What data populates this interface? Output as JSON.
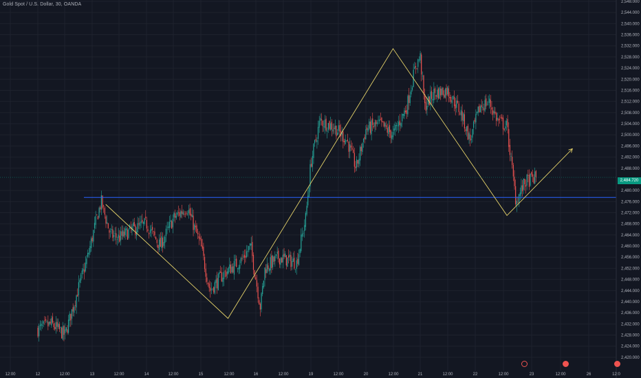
{
  "header": {
    "symbol_title": "Gold Spot / U.S. Dollar, 30, OANDA"
  },
  "price_axis": {
    "labels": [
      "2,548.000",
      "2,544.000",
      "2,540.000",
      "2,536.000",
      "2,532.000",
      "2,528.000",
      "2,524.000",
      "2,520.000",
      "2,516.000",
      "2,512.000",
      "2,508.000",
      "2,504.000",
      "2,500.000",
      "2,496.000",
      "2,492.000",
      "2,488.000",
      "2,480.000",
      "2,476.000",
      "2,472.000",
      "2,468.000",
      "2,464.000",
      "2,460.000",
      "2,456.000",
      "2,452.000",
      "2,448.000",
      "2,444.000",
      "2,440.000",
      "2,436.000",
      "2,432.000",
      "2,428.000",
      "2,424.000",
      "2,420.000"
    ],
    "current_price": "2,484.720"
  },
  "time_axis": {
    "labels": [
      "12:00",
      "12",
      "12:00",
      "13",
      "12:00",
      "14",
      "12:00",
      "15",
      "12:00",
      "16",
      "12:00",
      "19",
      "12:00",
      "20",
      "12:00",
      "21",
      "12:00",
      "22",
      "12:00",
      "23",
      "12:00",
      "26",
      "12:0"
    ]
  },
  "colors": {
    "bg": "#131722",
    "up": "#26a69a",
    "down": "#ef5350",
    "pattern": "#e6d36a",
    "level": "#2962ff",
    "grid": "#1e222d",
    "price_tag": "#089981"
  },
  "chart_data": {
    "type": "candlestick",
    "symbol": "XAUUSD",
    "timeframe": "30",
    "ylim": [
      2418,
      2548
    ],
    "horizontal_line": 2477.5,
    "zigzag": [
      {
        "x": "13 06:00",
        "y": 2475
      },
      {
        "x": "15 12:00",
        "y": 2434
      },
      {
        "x": "20 12:00",
        "y": 2531
      },
      {
        "x": "22 14:00",
        "y": 2471
      },
      {
        "x": "23 18:00",
        "y": 2495
      }
    ],
    "close_path": [
      {
        "x": "12 00:00",
        "y": 2430
      },
      {
        "x": "12 06:00",
        "y": 2432
      },
      {
        "x": "12 12:00",
        "y": 2428
      },
      {
        "x": "12 18:00",
        "y": 2445
      },
      {
        "x": "12 22:00",
        "y": 2456
      },
      {
        "x": "13 02:00",
        "y": 2470
      },
      {
        "x": "13 04:00",
        "y": 2476
      },
      {
        "x": "13 08:00",
        "y": 2464
      },
      {
        "x": "13 12:00",
        "y": 2463
      },
      {
        "x": "13 18:00",
        "y": 2466
      },
      {
        "x": "14 00:00",
        "y": 2468
      },
      {
        "x": "14 06:00",
        "y": 2460
      },
      {
        "x": "14 12:00",
        "y": 2470
      },
      {
        "x": "14 18:00",
        "y": 2474
      },
      {
        "x": "15 00:00",
        "y": 2460
      },
      {
        "x": "15 04:00",
        "y": 2444
      },
      {
        "x": "15 10:00",
        "y": 2450
      },
      {
        "x": "15 18:00",
        "y": 2455
      },
      {
        "x": "15 22:00",
        "y": 2460
      },
      {
        "x": "16 02:00",
        "y": 2438
      },
      {
        "x": "16 04:00",
        "y": 2452
      },
      {
        "x": "16 10:00",
        "y": 2456
      },
      {
        "x": "16 18:00",
        "y": 2454
      },
      {
        "x": "16 22:00",
        "y": 2470
      },
      {
        "x": "19 00:00",
        "y": 2490
      },
      {
        "x": "19 04:00",
        "y": 2505
      },
      {
        "x": "19 10:00",
        "y": 2503
      },
      {
        "x": "19 16:00",
        "y": 2498
      },
      {
        "x": "19 20:00",
        "y": 2488
      },
      {
        "x": "20 00:00",
        "y": 2502
      },
      {
        "x": "20 06:00",
        "y": 2504
      },
      {
        "x": "20 12:00",
        "y": 2500
      },
      {
        "x": "20 18:00",
        "y": 2510
      },
      {
        "x": "20 22:00",
        "y": 2525
      },
      {
        "x": "21 00:00",
        "y": 2528
      },
      {
        "x": "21 02:00",
        "y": 2510
      },
      {
        "x": "21 06:00",
        "y": 2515
      },
      {
        "x": "21 12:00",
        "y": 2516
      },
      {
        "x": "21 18:00",
        "y": 2508
      },
      {
        "x": "21 22:00",
        "y": 2498
      },
      {
        "x": "22 02:00",
        "y": 2510
      },
      {
        "x": "22 06:00",
        "y": 2512
      },
      {
        "x": "22 10:00",
        "y": 2505
      },
      {
        "x": "22 14:00",
        "y": 2503
      },
      {
        "x": "22 18:00",
        "y": 2476
      },
      {
        "x": "22 22:00",
        "y": 2483
      },
      {
        "x": "23 02:00",
        "y": 2484.72
      }
    ]
  }
}
